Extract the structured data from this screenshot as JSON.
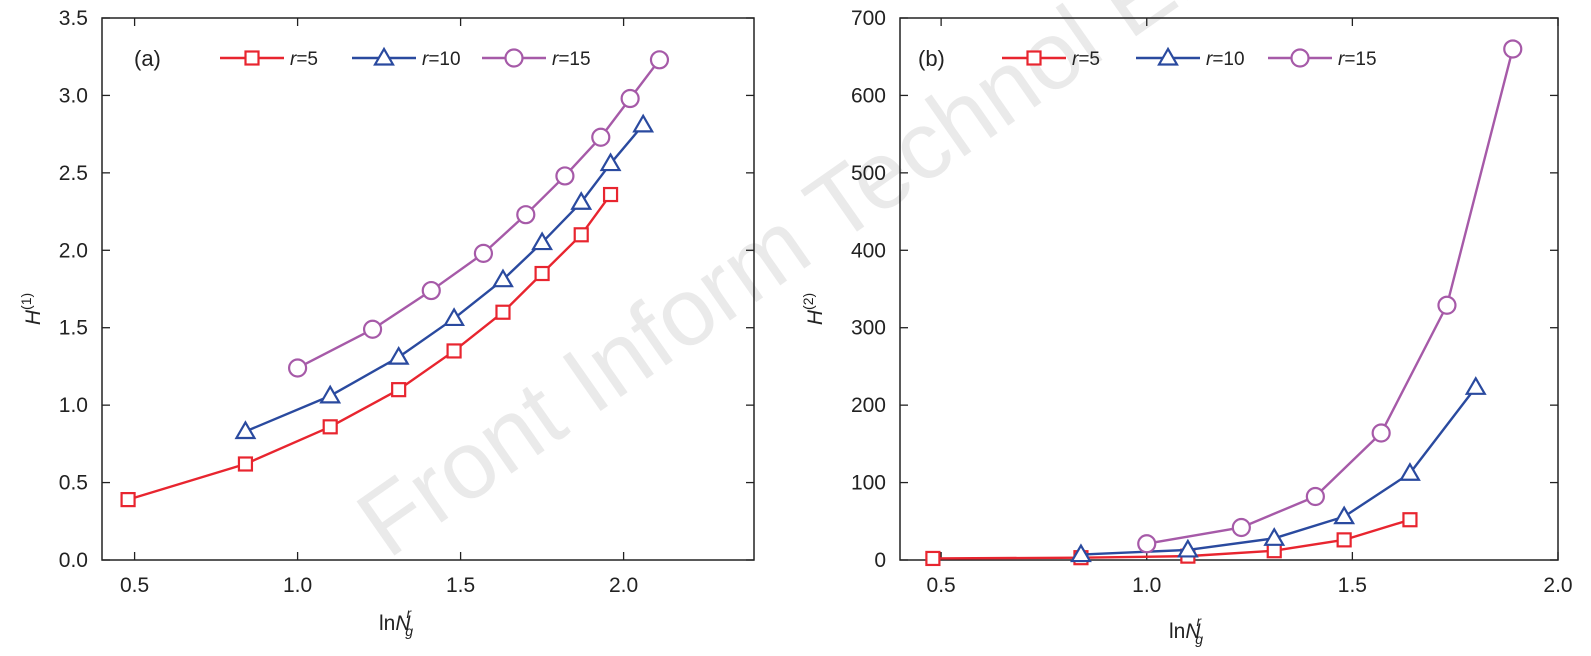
{
  "watermark": "Front Inform Technol Electron",
  "chart_data": [
    {
      "type": "line",
      "panel_label": "(a)",
      "xlabel": {
        "main": "ln",
        "var": "N",
        "sub": "g",
        "sup": "r"
      },
      "ylabel": {
        "var": "H",
        "sup": "(1)"
      },
      "xlim": [
        0.4,
        2.4
      ],
      "ylim": [
        0.0,
        3.5
      ],
      "xticks": [
        0.5,
        1.0,
        1.5,
        2.0
      ],
      "xtick_labels": [
        "0.5",
        "1.0",
        "1.5",
        "2.0"
      ],
      "yticks": [
        0.0,
        0.5,
        1.0,
        1.5,
        2.0,
        2.5,
        3.0,
        3.5
      ],
      "ytick_labels": [
        "0.0",
        "0.5",
        "1.0",
        "1.5",
        "2.0",
        "2.5",
        "3.0",
        "3.5"
      ],
      "grid": false,
      "legend_position": "top",
      "series": [
        {
          "name": "r=5",
          "legend_var": "r",
          "legend_val": "=5",
          "color": "#e8252f",
          "marker": "square",
          "x": [
            0.48,
            0.84,
            1.1,
            1.31,
            1.48,
            1.63,
            1.75,
            1.87,
            1.96
          ],
          "y": [
            0.39,
            0.62,
            0.86,
            1.1,
            1.35,
            1.6,
            1.85,
            2.1,
            2.36
          ]
        },
        {
          "name": "r=10",
          "legend_var": "r",
          "legend_val": "=10",
          "color": "#2a4a9f",
          "marker": "triangle",
          "x": [
            0.84,
            1.1,
            1.31,
            1.48,
            1.63,
            1.75,
            1.87,
            1.96,
            2.06
          ],
          "y": [
            0.83,
            1.06,
            1.31,
            1.56,
            1.81,
            2.05,
            2.31,
            2.56,
            2.81
          ]
        },
        {
          "name": "r=15",
          "legend_var": "r",
          "legend_val": "=15",
          "color": "#a65aa8",
          "marker": "circle",
          "x": [
            1.0,
            1.23,
            1.41,
            1.57,
            1.7,
            1.82,
            1.93,
            2.02,
            2.11
          ],
          "y": [
            1.24,
            1.49,
            1.74,
            1.98,
            2.23,
            2.48,
            2.73,
            2.98,
            3.23
          ]
        }
      ]
    },
    {
      "type": "line",
      "panel_label": "(b)",
      "xlabel": {
        "main": "ln",
        "var": "N",
        "sub": "g",
        "sup": "r"
      },
      "ylabel": {
        "var": "H",
        "sup": "(2)"
      },
      "xlim": [
        0.4,
        2.0
      ],
      "ylim": [
        0,
        700
      ],
      "xticks": [
        0.5,
        1.0,
        1.5,
        2.0
      ],
      "xtick_labels": [
        "0.5",
        "1.0",
        "1.5",
        "2.0"
      ],
      "yticks": [
        0,
        100,
        200,
        300,
        400,
        500,
        600,
        700
      ],
      "ytick_labels": [
        "0",
        "100",
        "200",
        "300",
        "400",
        "500",
        "600",
        "700"
      ],
      "grid": false,
      "legend_position": "top",
      "series": [
        {
          "name": "r=5",
          "legend_var": "r",
          "legend_val": "=5",
          "color": "#e8252f",
          "marker": "square",
          "x": [
            0.48,
            0.84,
            1.1,
            1.31,
            1.48,
            1.64
          ],
          "y": [
            2,
            3,
            5,
            12,
            26,
            52
          ]
        },
        {
          "name": "r=10",
          "legend_var": "r",
          "legend_val": "=10",
          "color": "#2a4a9f",
          "marker": "triangle",
          "x": [
            0.84,
            1.1,
            1.31,
            1.48,
            1.64,
            1.8
          ],
          "y": [
            7,
            13,
            28,
            56,
            112,
            223
          ]
        },
        {
          "name": "r=15",
          "legend_var": "r",
          "legend_val": "=15",
          "color": "#a65aa8",
          "marker": "circle",
          "x": [
            1.0,
            1.23,
            1.41,
            1.57,
            1.73,
            1.89
          ],
          "y": [
            21,
            42,
            82,
            164,
            329,
            660
          ]
        }
      ]
    }
  ]
}
